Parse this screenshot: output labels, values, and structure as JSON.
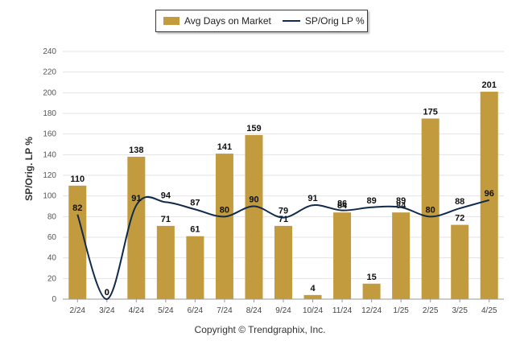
{
  "chart_data": {
    "type": "bar+line",
    "categories": [
      "2/24",
      "3/24",
      "4/24",
      "5/24",
      "6/24",
      "7/24",
      "8/24",
      "9/24",
      "10/24",
      "11/24",
      "12/24",
      "1/25",
      "2/25",
      "3/25",
      "4/25"
    ],
    "series": [
      {
        "name": "Avg Days on Market",
        "type": "bar",
        "color": "#c39b3f",
        "values": [
          110,
          0,
          138,
          71,
          61,
          141,
          159,
          71,
          4,
          84,
          15,
          84,
          175,
          72,
          201
        ]
      },
      {
        "name": "SP/Orig LP %",
        "type": "line",
        "color": "#0f2a4a",
        "values": [
          82,
          0,
          91,
          94,
          87,
          80,
          90,
          79,
          91,
          86,
          89,
          89,
          80,
          88,
          96
        ]
      }
    ],
    "ylabel": "SP/Orig. LP %",
    "ylim": [
      0,
      240
    ],
    "yticks": [
      0,
      20,
      40,
      60,
      80,
      100,
      120,
      140,
      160,
      180,
      200,
      220,
      240
    ],
    "grid": true,
    "legend": "top-center"
  },
  "footer": {
    "copyright": "Copyright © Trendgraphix, Inc."
  }
}
